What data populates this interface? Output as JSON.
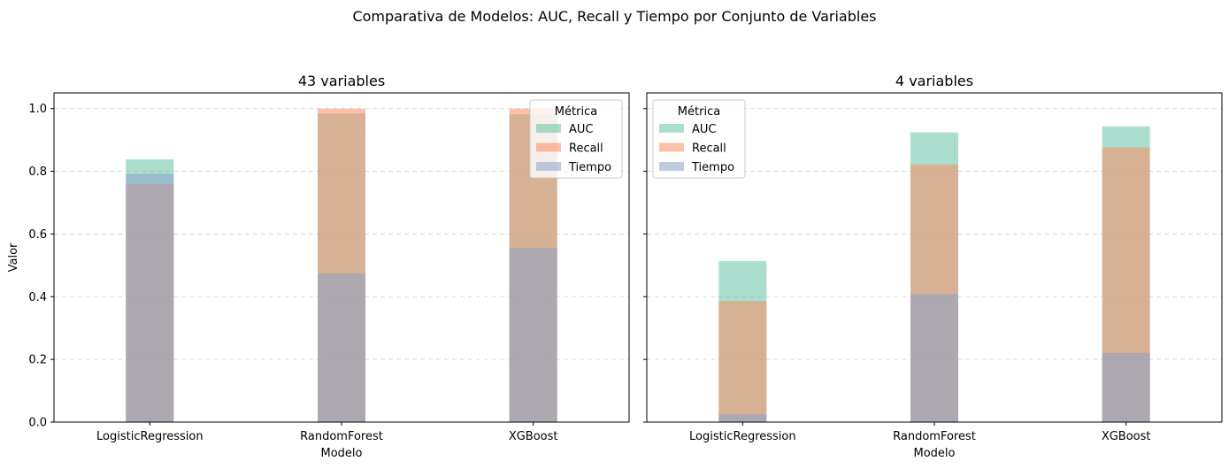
{
  "chart_data": {
    "type": "bar",
    "title": "Comparativa de Modelos: AUC, Recall y Tiempo por Conjunto de Variables",
    "ylabel": "Valor",
    "xlabel": "Modelo",
    "ylim": [
      0,
      1.05
    ],
    "yticks": [
      "0.0",
      "0.2",
      "0.4",
      "0.6",
      "0.8",
      "1.0"
    ],
    "grid": "y-dashed",
    "colors": {
      "AUC": "#66c2a5",
      "Recall": "#fc8d62",
      "Tiempo": "#8da0cb"
    },
    "legend": {
      "title": "Métrica",
      "entries": [
        "AUC",
        "Recall",
        "Tiempo"
      ]
    },
    "panels": [
      {
        "title": "43 variables",
        "legend_position": "top-right",
        "categories": [
          "LogisticRegression",
          "RandomForest",
          "XGBoost"
        ],
        "series": [
          {
            "name": "AUC",
            "values": [
              0.838,
              0.985,
              0.982
            ]
          },
          {
            "name": "Recall",
            "values": [
              0.76,
              1.0,
              1.0
            ]
          },
          {
            "name": "Tiempo",
            "values": [
              0.792,
              0.474,
              0.556
            ]
          }
        ]
      },
      {
        "title": "4 variables",
        "legend_position": "top-left",
        "categories": [
          "LogisticRegression",
          "RandomForest",
          "XGBoost"
        ],
        "series": [
          {
            "name": "AUC",
            "values": [
              0.514,
              0.924,
              0.943
            ]
          },
          {
            "name": "Recall",
            "values": [
              0.386,
              0.822,
              0.876
            ]
          },
          {
            "name": "Tiempo",
            "values": [
              0.025,
              0.408,
              0.22
            ]
          }
        ]
      }
    ]
  }
}
